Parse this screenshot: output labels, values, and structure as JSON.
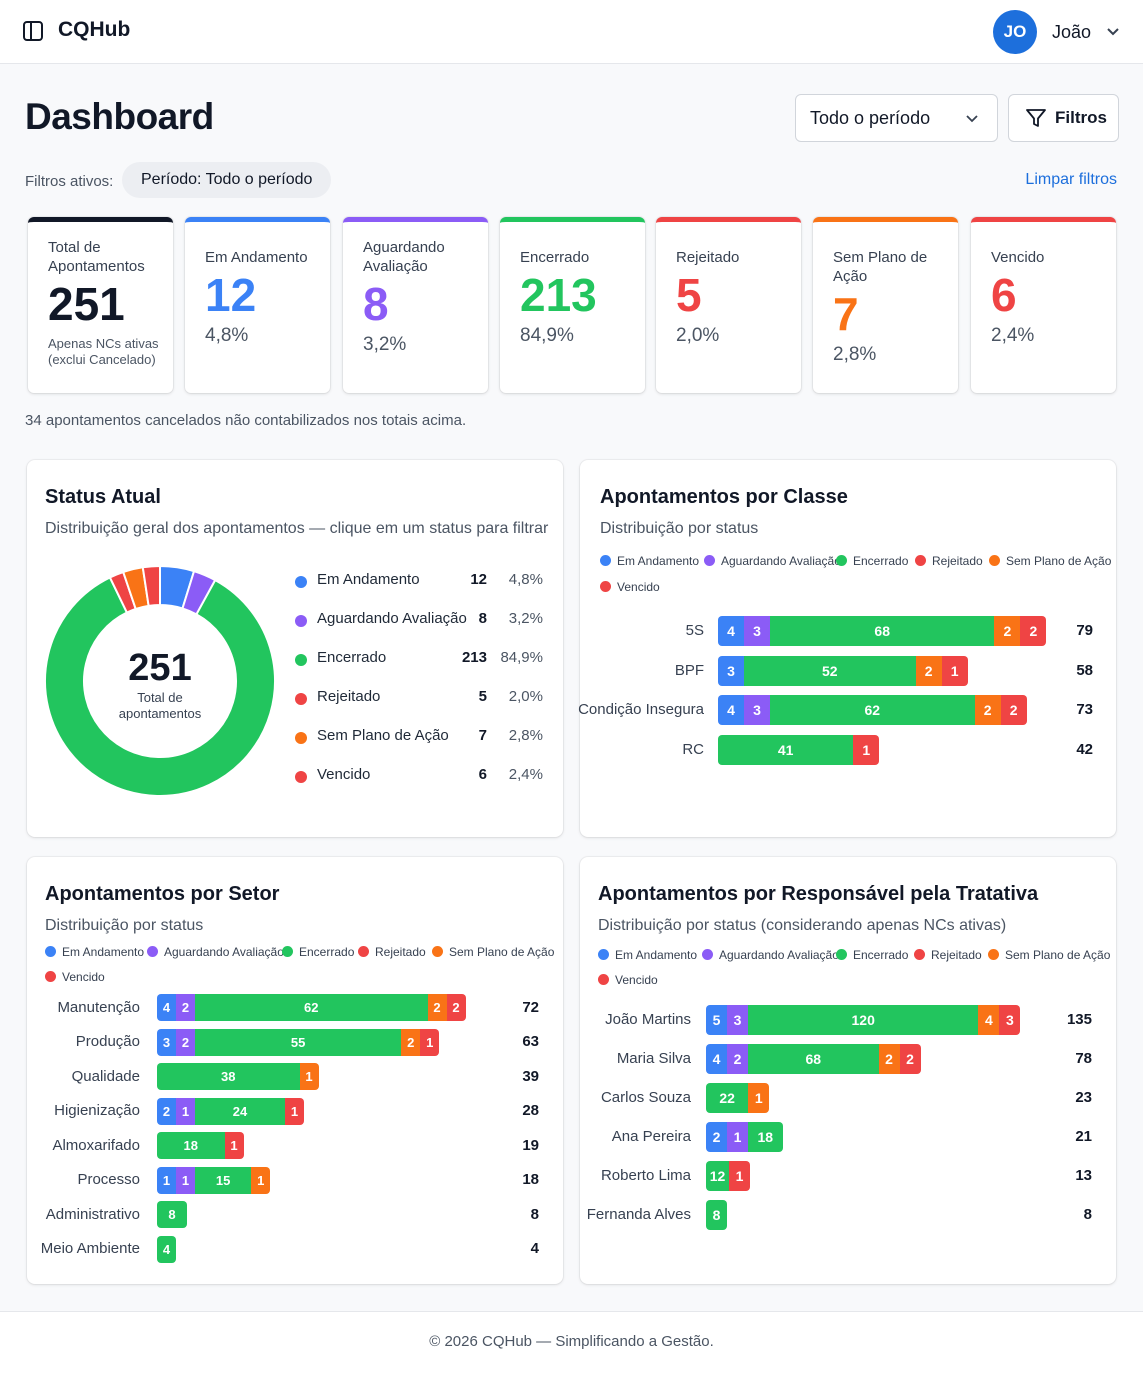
{
  "app": {
    "brand": "CQHub",
    "user_initials": "JO",
    "user_name": "João"
  },
  "header": {
    "title": "Dashboard",
    "period_select": "Todo o período",
    "filters_button": "Filtros",
    "active_filters_label": "Filtros ativos:",
    "period_chip": "Período: Todo o período",
    "clear_filters": "Limpar filtros"
  },
  "colors": {
    "em_andamento": "#3b82f6",
    "aguardando": "#8b5cf6",
    "encerrado": "#22c55e",
    "rejeitado": "#ef4444",
    "sem_plano": "#f97316",
    "vencido": "#ef4444",
    "total": "#111827"
  },
  "stats": [
    {
      "label": "Total de Apontamentos",
      "value": "251",
      "note": "Apenas NCs ativas (exclui Cancelado)",
      "color": "#111827"
    },
    {
      "label": "Em Andamento",
      "value": "12",
      "pct": "4,8%",
      "color": "#3b82f6"
    },
    {
      "label": "Aguardando Avaliação",
      "value": "8",
      "pct": "3,2%",
      "color": "#8b5cf6"
    },
    {
      "label": "Encerrado",
      "value": "213",
      "pct": "84,9%",
      "color": "#22c55e"
    },
    {
      "label": "Rejeitado",
      "value": "5",
      "pct": "2,0%",
      "color": "#ef4444"
    },
    {
      "label": "Sem Plano de Ação",
      "value": "7",
      "pct": "2,8%",
      "color": "#f97316"
    },
    {
      "label": "Vencido",
      "value": "6",
      "pct": "2,4%",
      "color": "#ef4444"
    }
  ],
  "cancel_note": "34 apontamentos cancelados não contabilizados nos totais acima.",
  "status_panel": {
    "title": "Status Atual",
    "subtitle": "Distribuição geral dos apontamentos — clique em um status para filtrar",
    "center_value": "251",
    "center_caption": "Total de apontamentos",
    "items": [
      {
        "name": "Em Andamento",
        "count": "12",
        "pct": "4,8%",
        "value": 12,
        "color": "#3b82f6"
      },
      {
        "name": "Aguardando Avaliação",
        "count": "8",
        "pct": "3,2%",
        "value": 8,
        "color": "#8b5cf6"
      },
      {
        "name": "Encerrado",
        "count": "213",
        "pct": "84,9%",
        "value": 213,
        "color": "#22c55e"
      },
      {
        "name": "Rejeitado",
        "count": "5",
        "pct": "2,0%",
        "value": 5,
        "color": "#ef4444"
      },
      {
        "name": "Sem Plano de Ação",
        "count": "7",
        "pct": "2,8%",
        "value": 7,
        "color": "#f97316"
      },
      {
        "name": "Vencido",
        "count": "6",
        "pct": "2,4%",
        "value": 6,
        "color": "#ef4444"
      }
    ]
  },
  "legend_labels": [
    "Em Andamento",
    "Aguardando Avaliação",
    "Encerrado",
    "Rejeitado",
    "Sem Plano de Ação",
    "Vencido"
  ],
  "classe_panel": {
    "title": "Apontamentos por Classe",
    "subtitle": "Distribuição por status",
    "rows": [
      {
        "label": "5S",
        "total": "79",
        "segments": [
          4,
          3,
          68,
          0,
          2,
          2
        ]
      },
      {
        "label": "BPF",
        "total": "58",
        "segments": [
          3,
          0,
          52,
          0,
          2,
          1
        ]
      },
      {
        "label": "Condição Insegura",
        "total": "73",
        "segments": [
          4,
          3,
          62,
          0,
          2,
          2
        ]
      },
      {
        "label": "RC",
        "total": "42",
        "segments": [
          0,
          0,
          41,
          0,
          0,
          1
        ]
      }
    ]
  },
  "setor_panel": {
    "title": "Apontamentos por Setor",
    "subtitle": "Distribuição por status",
    "rows": [
      {
        "label": "Manutenção",
        "total": "72",
        "segments": [
          4,
          2,
          62,
          0,
          2,
          2
        ]
      },
      {
        "label": "Produção",
        "total": "63",
        "segments": [
          3,
          2,
          55,
          0,
          2,
          1
        ]
      },
      {
        "label": "Qualidade",
        "total": "39",
        "segments": [
          0,
          0,
          38,
          0,
          1,
          0
        ]
      },
      {
        "label": "Higienização",
        "total": "28",
        "segments": [
          2,
          1,
          24,
          0,
          0,
          1
        ]
      },
      {
        "label": "Almoxarifado",
        "total": "19",
        "segments": [
          0,
          0,
          18,
          0,
          0,
          1
        ]
      },
      {
        "label": "Processo",
        "total": "18",
        "segments": [
          1,
          1,
          15,
          0,
          1,
          0
        ]
      },
      {
        "label": "Administrativo",
        "total": "8",
        "segments": [
          0,
          0,
          8,
          0,
          0,
          0
        ]
      },
      {
        "label": "Meio Ambiente",
        "total": "4",
        "segments": [
          0,
          0,
          4,
          0,
          0,
          0
        ]
      }
    ]
  },
  "resp_panel": {
    "title": "Apontamentos por Responsável pela Tratativa",
    "subtitle": "Distribuição por status (considerando apenas NCs ativas)",
    "rows": [
      {
        "label": "João Martins",
        "total": "135",
        "segments": [
          5,
          3,
          120,
          0,
          4,
          3
        ]
      },
      {
        "label": "Maria Silva",
        "total": "78",
        "segments": [
          4,
          2,
          68,
          0,
          2,
          2
        ]
      },
      {
        "label": "Carlos Souza",
        "total": "23",
        "segments": [
          0,
          0,
          22,
          0,
          1,
          0
        ]
      },
      {
        "label": "Ana Pereira",
        "total": "21",
        "segments": [
          2,
          1,
          18,
          0,
          0,
          0
        ]
      },
      {
        "label": "Roberto Lima",
        "total": "13",
        "segments": [
          0,
          0,
          12,
          0,
          0,
          1
        ]
      },
      {
        "label": "Fernanda Alves",
        "total": "8",
        "segments": [
          0,
          0,
          8,
          0,
          0,
          0
        ]
      }
    ]
  },
  "footer": "© 2026 CQHub — Simplificando a Gestão."
}
